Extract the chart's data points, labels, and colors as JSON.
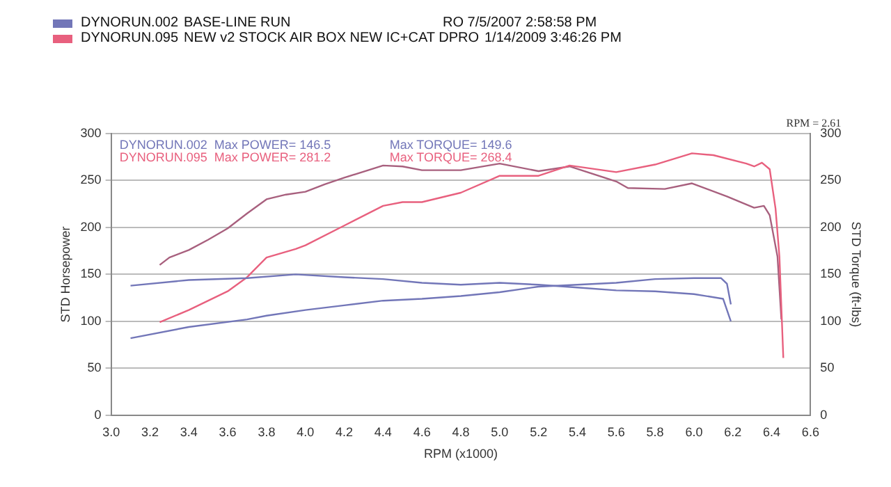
{
  "chart_data": {
    "type": "line",
    "xlabel": "RPM (x1000)",
    "ylabel": "STD Horsepower",
    "y2label": "STD Torque (ft-lbs)",
    "xlim": [
      3.0,
      6.6
    ],
    "xticks": [
      {
        "value": 3.0,
        "label": "3.0"
      },
      3.2,
      3.4,
      3.6,
      3.8,
      {
        "value": 4.0,
        "label": "4.0"
      },
      4.2,
      4.4,
      4.6,
      4.8,
      {
        "value": 5.0,
        "label": "5.0"
      },
      5.2,
      5.4,
      5.6,
      5.8,
      {
        "value": 6.0,
        "label": "6.0"
      },
      6.2,
      6.4,
      6.6
    ],
    "ylim": [
      0,
      300
    ],
    "yticks": [
      0,
      50,
      100,
      150,
      200,
      250,
      300
    ],
    "y2lim": [
      0,
      300
    ],
    "y2ticks": [
      0,
      50,
      100,
      150,
      200,
      250,
      300
    ],
    "grid": "y",
    "legend": false,
    "marker": "none",
    "line_style": "solid",
    "annotations": [
      "DYNORUN.002",
      "BASE-LINE RUN",
      "RO 7/5/2007 2:58:58 PM",
      "DYNORUN.095",
      "NEW v2 STOCK AIR BOX NEW IC+CAT DPRO",
      "1/14/2009 3:46:26 PM",
      "DYNORUN.002  Max POWER= 146.5",
      "Max TORQUE= 149.6",
      "DYNORUN.095  Max POWER= 281.2",
      "Max TORQUE= 268.4",
      "RPM = 2.61"
    ],
    "series": [
      {
        "color": "#7276b8",
        "x": [
          3.1,
          3.4,
          3.7,
          3.8,
          4.0,
          4.2,
          4.4,
          4.6,
          4.8,
          5.0,
          5.2,
          5.4,
          5.6,
          5.8,
          6.0,
          6.14,
          6.17,
          6.19
        ],
        "values": [
          82,
          94,
          102,
          106,
          112,
          117,
          122,
          124,
          127,
          131,
          137,
          139,
          141,
          145,
          146,
          146,
          140,
          118
        ]
      },
      {
        "color": "#7276b8",
        "x": [
          3.1,
          3.4,
          3.7,
          3.95,
          4.2,
          4.4,
          4.6,
          4.8,
          5.0,
          5.2,
          5.4,
          5.6,
          5.8,
          6.0,
          6.15,
          6.19
        ],
        "values": [
          138,
          144,
          146,
          150,
          147,
          145,
          141,
          139,
          141,
          139,
          136,
          133,
          132,
          129,
          124,
          100
        ]
      },
      {
        "color": "#e8607e",
        "x": [
          3.25,
          3.4,
          3.5,
          3.6,
          3.7,
          3.8,
          3.95,
          4.0,
          4.2,
          4.4,
          4.5,
          4.6,
          4.8,
          5.0,
          5.2,
          5.36,
          5.6,
          5.8,
          5.99,
          6.1,
          6.27,
          6.31,
          6.35,
          6.39,
          6.42,
          6.44,
          6.46
        ],
        "values": [
          99,
          112,
          122,
          132,
          147,
          168,
          177,
          181,
          202,
          223,
          227,
          227,
          237,
          255,
          255,
          266,
          259,
          267,
          279,
          277,
          268,
          265,
          269,
          262,
          220,
          169,
          61
        ]
      },
      {
        "color": "#a8607e",
        "x": [
          3.25,
          3.3,
          3.4,
          3.5,
          3.6,
          3.7,
          3.8,
          3.9,
          4.0,
          4.1,
          4.2,
          4.4,
          4.5,
          4.6,
          4.8,
          5.0,
          5.2,
          5.36,
          5.6,
          5.66,
          5.85,
          5.99,
          6.17,
          6.31,
          6.36,
          6.39,
          6.43,
          6.45
        ],
        "values": [
          160,
          168,
          176,
          187,
          199,
          215,
          230,
          235,
          238,
          246,
          253,
          266,
          265,
          261,
          261,
          268,
          260,
          265,
          249,
          242,
          241,
          247,
          233,
          221,
          223,
          213,
          169,
          102
        ]
      }
    ]
  }
}
